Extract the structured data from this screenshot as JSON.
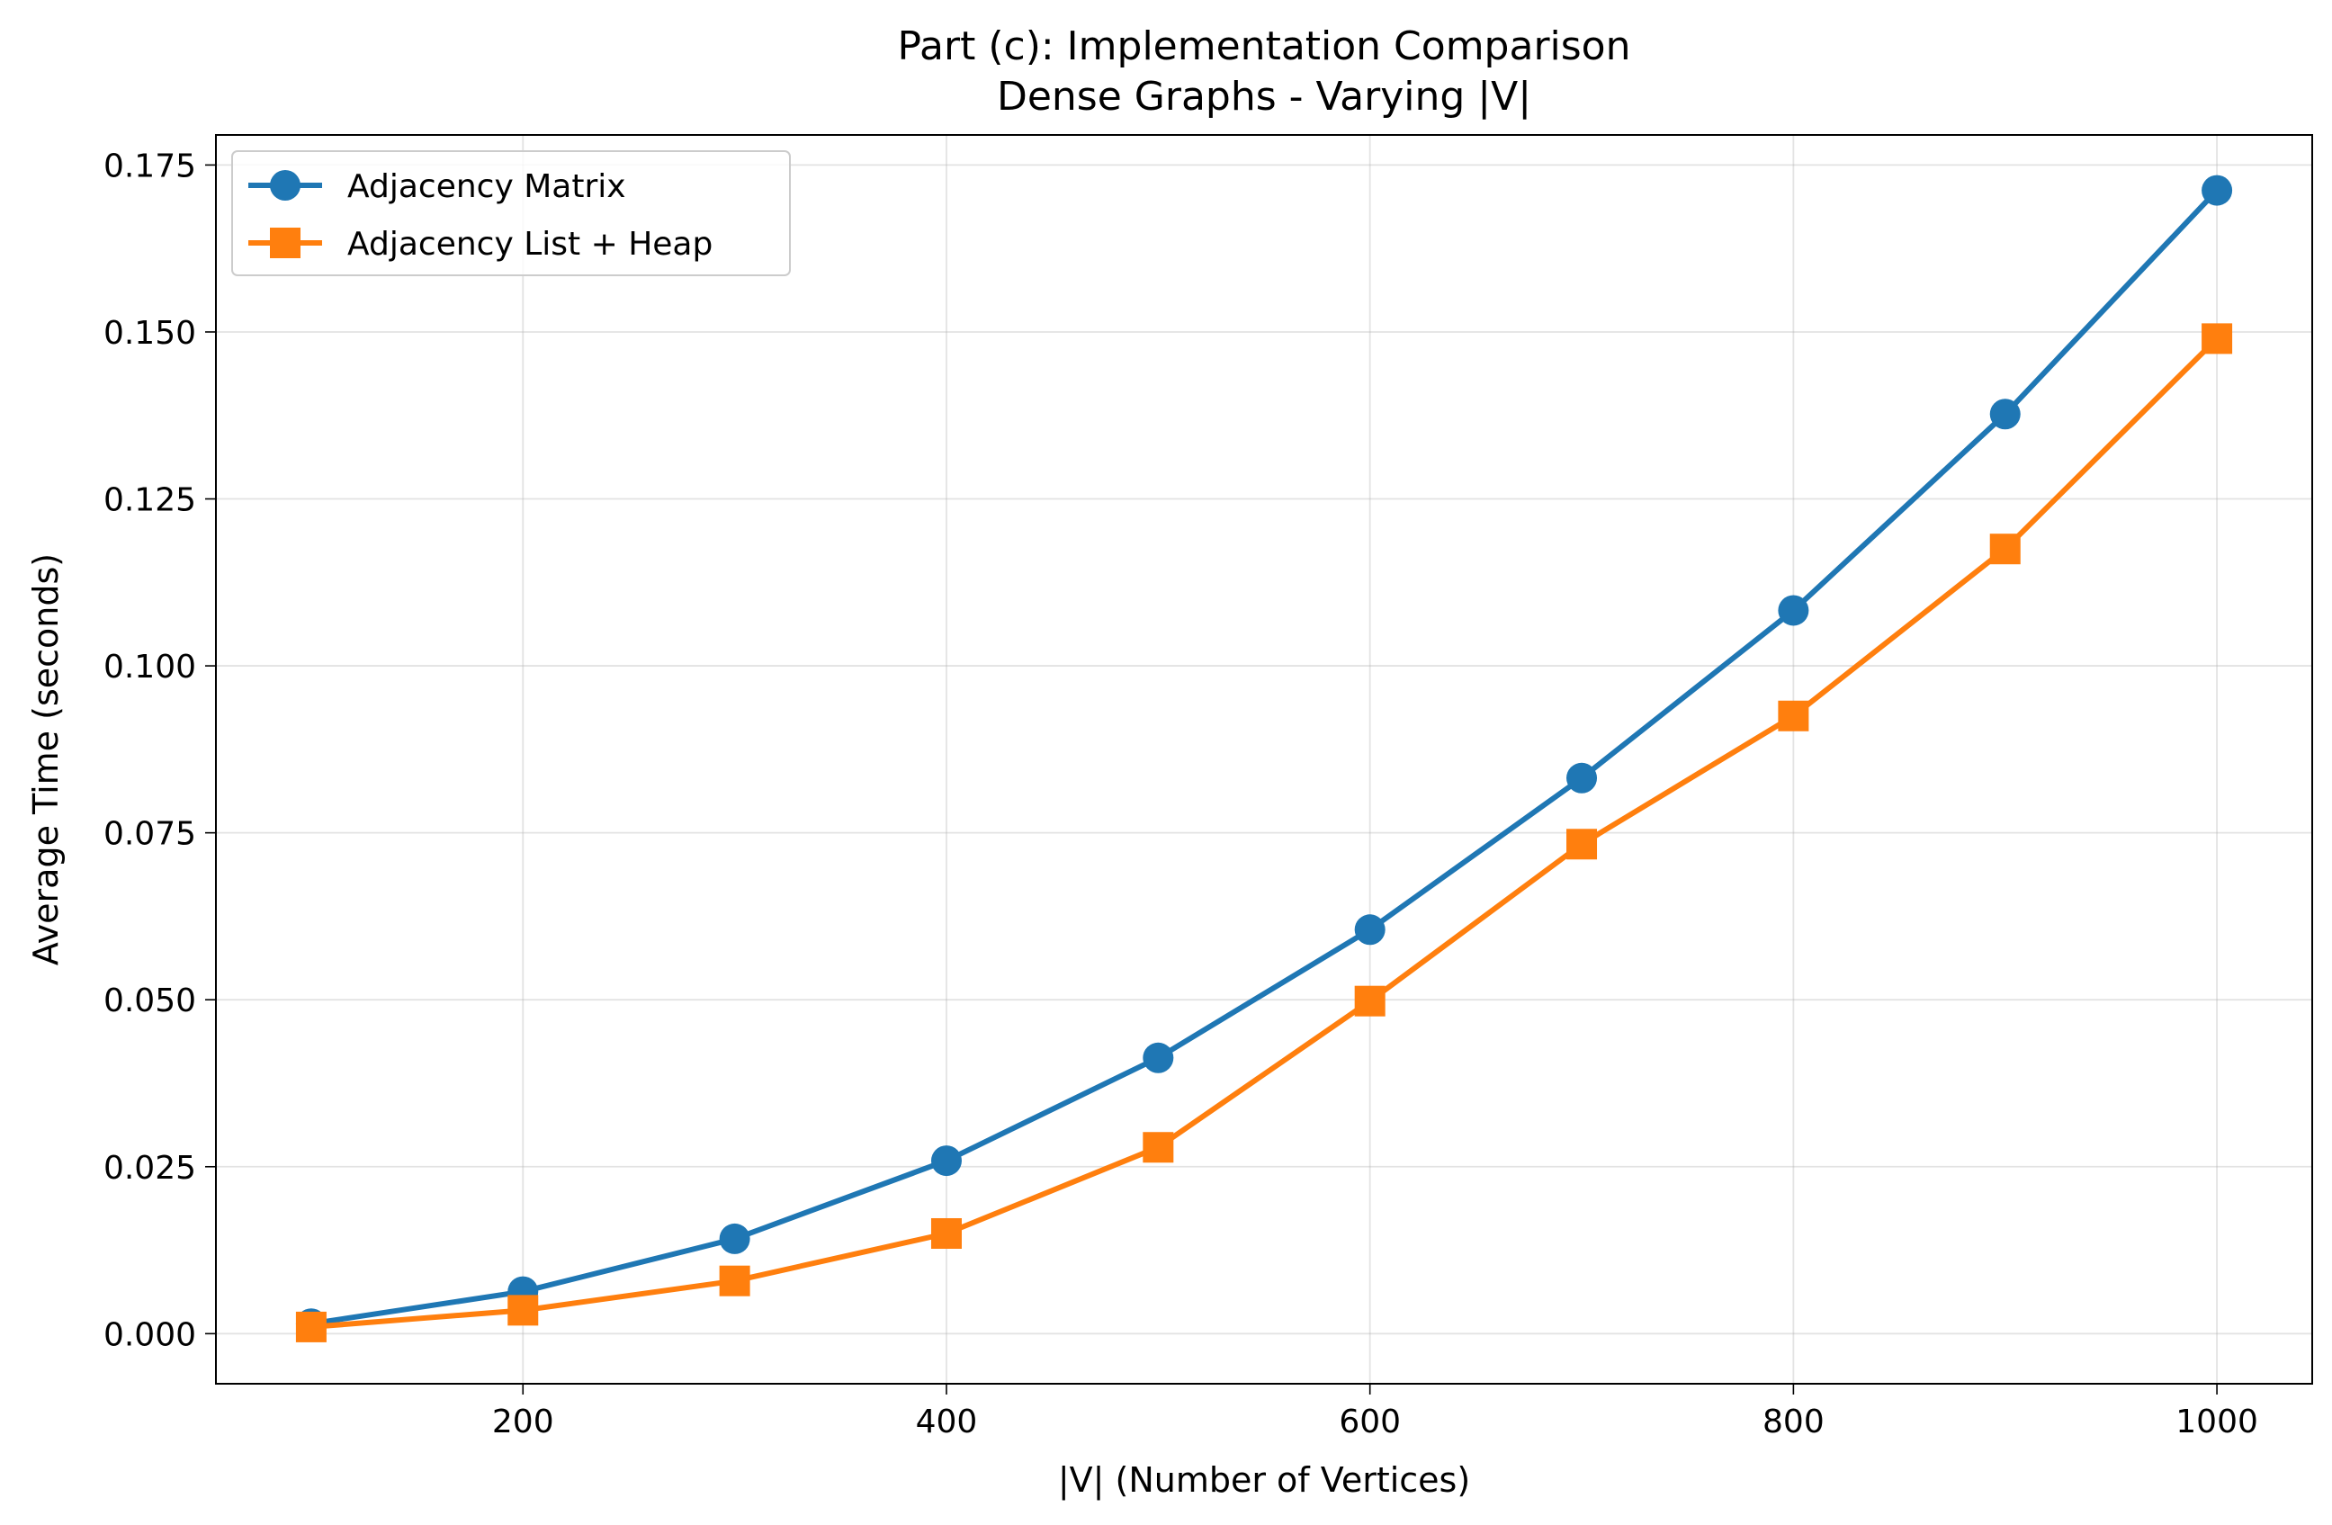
{
  "chart_data": {
    "type": "line",
    "title_line1": "Part (c): Implementation Comparison",
    "title_line2": "Dense Graphs - Varying |V|",
    "xlabel": "|V| (Number of Vertices)",
    "ylabel": "Average Time (seconds)",
    "xlim": [
      55,
      1045
    ],
    "ylim": [
      -0.0075,
      0.1795
    ],
    "x_ticks": [
      200,
      400,
      600,
      800,
      1000
    ],
    "x_tick_labels": [
      "200",
      "400",
      "600",
      "800",
      "1000"
    ],
    "y_ticks": [
      0.0,
      0.025,
      0.05,
      0.075,
      0.1,
      0.125,
      0.15,
      0.175
    ],
    "y_tick_labels": [
      "0.000",
      "0.025",
      "0.050",
      "0.075",
      "0.100",
      "0.125",
      "0.150",
      "0.175"
    ],
    "grid": true,
    "legend_position": "top-left",
    "x": [
      100,
      200,
      300,
      400,
      500,
      600,
      700,
      800,
      900,
      1000
    ],
    "series": [
      {
        "name": "Adjacency Matrix",
        "color": "#1f77b4",
        "marker": "circle",
        "values": [
          0.0015,
          0.0063,
          0.0142,
          0.0259,
          0.0413,
          0.0605,
          0.0832,
          0.1083,
          0.1377,
          0.1712
        ]
      },
      {
        "name": "Adjacency List + Heap",
        "color": "#ff7f0e",
        "marker": "square",
        "values": [
          0.001,
          0.0035,
          0.0079,
          0.015,
          0.0279,
          0.0498,
          0.0733,
          0.0925,
          0.1175,
          0.149
        ]
      }
    ]
  }
}
